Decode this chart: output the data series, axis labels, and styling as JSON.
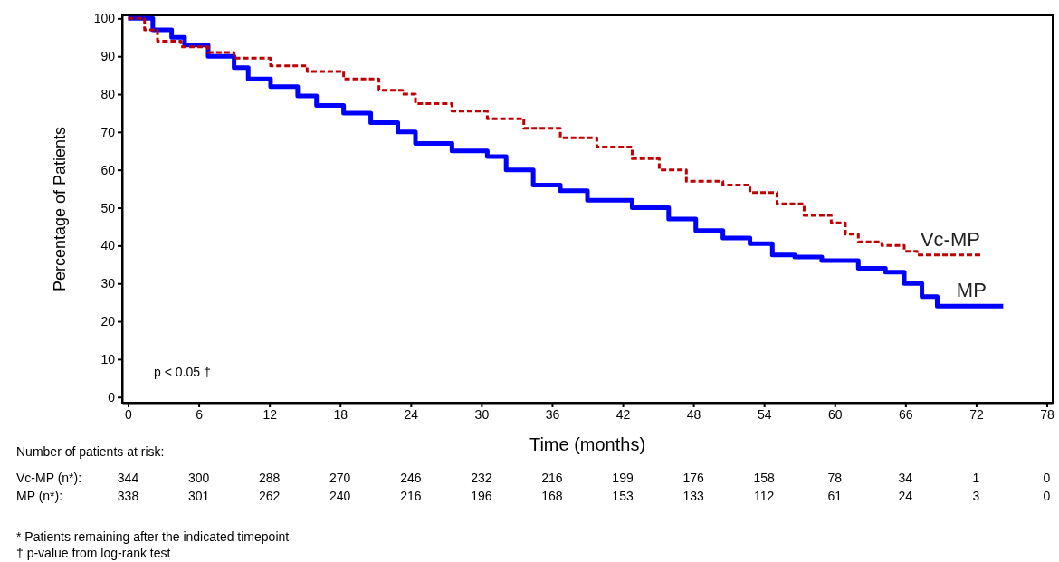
{
  "chart_data": {
    "type": "step",
    "xlabel": "Time (months)",
    "ylabel": "Percentage of Patients",
    "xlim": [
      -0.5,
      78.5
    ],
    "ylim": [
      -1.5,
      100.8
    ],
    "xticks": [
      0,
      6,
      12,
      18,
      24,
      30,
      36,
      42,
      48,
      54,
      60,
      66,
      72,
      78
    ],
    "yticks": [
      0,
      10,
      20,
      30,
      40,
      50,
      60,
      70,
      80,
      90,
      100
    ],
    "grid": false,
    "legend": false,
    "series": [
      {
        "name": "Vc-MP",
        "color": "#c00000",
        "line_style": "dashed",
        "x": [
          0,
          1.4,
          2.5,
          4.5,
          6.8,
          9,
          12.1,
          15.2,
          18.3,
          21.3,
          23.3,
          24.4,
          27.5,
          30.5,
          33.6,
          36.7,
          39.8,
          42.8,
          45.1,
          47.4,
          50.5,
          52.8,
          55.1,
          57.4,
          59.7,
          60.9,
          62,
          64,
          65.9,
          67,
          72.5
        ],
        "values": [
          100,
          97,
          94,
          92.5,
          91,
          89.5,
          87.5,
          86,
          84,
          81,
          80,
          77.5,
          75.5,
          73.5,
          71,
          68.5,
          66,
          63,
          60,
          57,
          56,
          54,
          51,
          48,
          46,
          43,
          41,
          40,
          38.5,
          37.5,
          37.5
        ]
      },
      {
        "name": "MP",
        "color": "#0000ff",
        "line_style": "solid",
        "x": [
          0,
          2.1,
          3.7,
          4.8,
          6.8,
          9,
          10.2,
          12.1,
          14.4,
          16,
          18.3,
          20.6,
          22.9,
          24.4,
          27.5,
          30.5,
          32.1,
          34.4,
          36.7,
          39,
          42.8,
          45.9,
          48.2,
          50.5,
          52.8,
          54.7,
          56.6,
          58.9,
          62,
          64.3,
          65.9,
          67.4,
          68.7,
          74.3
        ],
        "values": [
          100,
          97,
          95,
          93,
          90,
          87,
          84,
          82,
          79.5,
          77,
          75,
          72.5,
          70,
          67,
          65,
          63.5,
          60,
          56,
          54.5,
          52,
          50,
          47,
          44,
          42,
          40.5,
          37.5,
          37,
          36,
          34,
          33,
          30,
          26.5,
          24,
          24
        ]
      }
    ],
    "annotations": [
      "p < 0.05 †",
      "Number of patients at risk:",
      "Vc-MP (n*):",
      "344",
      "300",
      "288",
      "270",
      "246",
      "232",
      "216",
      "199",
      "176",
      "158",
      "78",
      "34",
      "1",
      "0",
      "MP (n*):",
      "338",
      "301",
      "262",
      "240",
      "216",
      "196",
      "168",
      "153",
      "133",
      "112",
      "61",
      "24",
      "3",
      "0",
      "* Patients remaining after the indicated timepoint",
      "† p-value from log-rank test"
    ]
  }
}
